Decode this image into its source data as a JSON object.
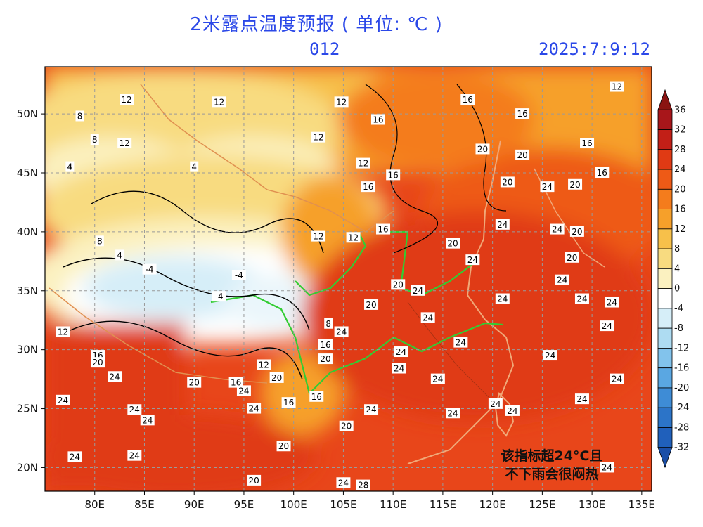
{
  "title": "2米露点温度预报 ( 单位: ℃ )",
  "lead_time": "012",
  "datetime": "2025:7:9:12",
  "annotation": {
    "line1": "该指标超24°C且",
    "line2": "不下雨会很闷热"
  },
  "map": {
    "lon_range": [
      75,
      136
    ],
    "lat_range": [
      18,
      54
    ],
    "lon_ticks": [
      "80E",
      "85E",
      "90E",
      "95E",
      "100E",
      "105E",
      "110E",
      "115E",
      "120E",
      "125E",
      "130E",
      "135E"
    ],
    "lat_ticks": [
      "20N",
      "25N",
      "30N",
      "35N",
      "40N",
      "45N",
      "50N"
    ],
    "contour_labels": [
      {
        "v": "12",
        "lon": 83.2,
        "lat": 51.2
      },
      {
        "v": "12",
        "lon": 92.5,
        "lat": 51.0
      },
      {
        "v": "12",
        "lon": 104.8,
        "lat": 51.0
      },
      {
        "v": "16",
        "lon": 117.5,
        "lat": 51.2
      },
      {
        "v": "12",
        "lon": 132.5,
        "lat": 52.3
      },
      {
        "v": "8",
        "lon": 78.5,
        "lat": 49.8
      },
      {
        "v": "16",
        "lon": 108.5,
        "lat": 49.5
      },
      {
        "v": "16",
        "lon": 123.0,
        "lat": 50.0
      },
      {
        "v": "12",
        "lon": 102.5,
        "lat": 48.0
      },
      {
        "v": "8",
        "lon": 80.0,
        "lat": 47.8
      },
      {
        "v": "12",
        "lon": 83.0,
        "lat": 47.5
      },
      {
        "v": "20",
        "lon": 119.0,
        "lat": 47.0
      },
      {
        "v": "16",
        "lon": 129.5,
        "lat": 47.5
      },
      {
        "v": "20",
        "lon": 123.0,
        "lat": 46.5
      },
      {
        "v": "4",
        "lon": 77.5,
        "lat": 45.5
      },
      {
        "v": "12",
        "lon": 107.0,
        "lat": 45.8
      },
      {
        "v": "16",
        "lon": 110.0,
        "lat": 44.8
      },
      {
        "v": "16",
        "lon": 131.0,
        "lat": 45.0
      },
      {
        "v": "20",
        "lon": 121.5,
        "lat": 44.2
      },
      {
        "v": "24",
        "lon": 125.5,
        "lat": 43.8
      },
      {
        "v": "20",
        "lon": 128.3,
        "lat": 44.0
      },
      {
        "v": "16",
        "lon": 107.5,
        "lat": 43.8
      },
      {
        "v": "24",
        "lon": 121.0,
        "lat": 40.6
      },
      {
        "v": "24",
        "lon": 126.5,
        "lat": 40.2
      },
      {
        "v": "20",
        "lon": 128.5,
        "lat": 40.0
      },
      {
        "v": "12",
        "lon": 102.5,
        "lat": 39.6
      },
      {
        "v": "12",
        "lon": 106.0,
        "lat": 39.5
      },
      {
        "v": "16",
        "lon": 109.0,
        "lat": 40.2
      },
      {
        "v": "20",
        "lon": 116.0,
        "lat": 39.0
      },
      {
        "v": "20",
        "lon": 128.0,
        "lat": 37.8
      },
      {
        "v": "24",
        "lon": 118.0,
        "lat": 37.6
      },
      {
        "v": "24",
        "lon": 127.0,
        "lat": 35.9
      },
      {
        "v": "20",
        "lon": 110.5,
        "lat": 35.5
      },
      {
        "v": "24",
        "lon": 112.5,
        "lat": 35.0
      },
      {
        "v": "24",
        "lon": 121.0,
        "lat": 34.3
      },
      {
        "v": "24",
        "lon": 129.0,
        "lat": 34.3
      },
      {
        "v": "20",
        "lon": 107.8,
        "lat": 33.8
      },
      {
        "v": "24",
        "lon": 132.0,
        "lat": 34.0
      },
      {
        "v": "24",
        "lon": 113.5,
        "lat": 32.7
      },
      {
        "v": "24",
        "lon": 131.5,
        "lat": 32.0
      },
      {
        "v": "8",
        "lon": 103.5,
        "lat": 32.2
      },
      {
        "v": "24",
        "lon": 104.8,
        "lat": 31.5
      },
      {
        "v": "12",
        "lon": 76.8,
        "lat": 31.5
      },
      {
        "v": "16",
        "lon": 103.2,
        "lat": 30.4
      },
      {
        "v": "24",
        "lon": 116.8,
        "lat": 30.6
      },
      {
        "v": "24",
        "lon": 110.8,
        "lat": 29.8
      },
      {
        "v": "16",
        "lon": 80.3,
        "lat": 29.5
      },
      {
        "v": "20",
        "lon": 80.3,
        "lat": 28.9
      },
      {
        "v": "20",
        "lon": 103.2,
        "lat": 29.2
      },
      {
        "v": "24",
        "lon": 125.8,
        "lat": 29.5
      },
      {
        "v": "12",
        "lon": 97.0,
        "lat": 28.7
      },
      {
        "v": "24",
        "lon": 110.6,
        "lat": 28.4
      },
      {
        "v": "24",
        "lon": 82.0,
        "lat": 27.7
      },
      {
        "v": "20",
        "lon": 98.3,
        "lat": 27.6
      },
      {
        "v": "24",
        "lon": 114.5,
        "lat": 27.5
      },
      {
        "v": "24",
        "lon": 132.5,
        "lat": 27.5
      },
      {
        "v": "20",
        "lon": 90.0,
        "lat": 27.2
      },
      {
        "v": "16",
        "lon": 94.2,
        "lat": 27.2
      },
      {
        "v": "24",
        "lon": 95.0,
        "lat": 26.5
      },
      {
        "v": "16",
        "lon": 102.3,
        "lat": 26.0
      },
      {
        "v": "24",
        "lon": 76.8,
        "lat": 25.7
      },
      {
        "v": "24",
        "lon": 96.0,
        "lat": 25.0
      },
      {
        "v": "16",
        "lon": 99.5,
        "lat": 25.5
      },
      {
        "v": "24",
        "lon": 120.3,
        "lat": 25.4
      },
      {
        "v": "24",
        "lon": 129.0,
        "lat": 25.8
      },
      {
        "v": "24",
        "lon": 84.0,
        "lat": 24.9
      },
      {
        "v": "24",
        "lon": 107.8,
        "lat": 24.9
      },
      {
        "v": "24",
        "lon": 116.0,
        "lat": 24.6
      },
      {
        "v": "24",
        "lon": 122.0,
        "lat": 24.8
      },
      {
        "v": "24",
        "lon": 85.3,
        "lat": 24.0
      },
      {
        "v": "20",
        "lon": 105.3,
        "lat": 23.5
      },
      {
        "v": "20",
        "lon": 99.0,
        "lat": 21.8
      },
      {
        "v": "24",
        "lon": 78.0,
        "lat": 20.9
      },
      {
        "v": "24",
        "lon": 84.0,
        "lat": 21.0
      },
      {
        "v": "20",
        "lon": 96.0,
        "lat": 18.9
      },
      {
        "v": "24",
        "lon": 105.0,
        "lat": 18.7
      },
      {
        "v": "28",
        "lon": 107.0,
        "lat": 18.5
      },
      {
        "v": "24",
        "lon": 131.5,
        "lat": 20.0
      },
      {
        "v": "4",
        "lon": 90.0,
        "lat": 45.5
      },
      {
        "v": "-4",
        "lon": 85.5,
        "lat": 36.8
      },
      {
        "v": "-4",
        "lon": 92.5,
        "lat": 34.5
      },
      {
        "v": "8",
        "lon": 80.5,
        "lat": 39.2
      },
      {
        "v": "4",
        "lon": 82.5,
        "lat": 38.0
      },
      {
        "v": "-4",
        "lon": 94.5,
        "lat": 36.3
      }
    ]
  },
  "colorbar": {
    "labels": [
      "36",
      "32",
      "28",
      "24",
      "20",
      "16",
      "12",
      "8",
      "4",
      "0",
      "-4",
      "-8",
      "-12",
      "-16",
      "-20",
      "-24",
      "-28",
      "-32"
    ],
    "colors": [
      "#8a1412",
      "#a8161a",
      "#c21f17",
      "#e03a14",
      "#ee5a16",
      "#f47c1c",
      "#f6a02a",
      "#f7c04a",
      "#f8db80",
      "#fbf1c0",
      "#ffffff",
      "#d6eef8",
      "#aedcf2",
      "#82c3ec",
      "#5aa7e2",
      "#3e8cd6",
      "#2c74c8",
      "#2060bb",
      "#1a4fa8"
    ]
  }
}
